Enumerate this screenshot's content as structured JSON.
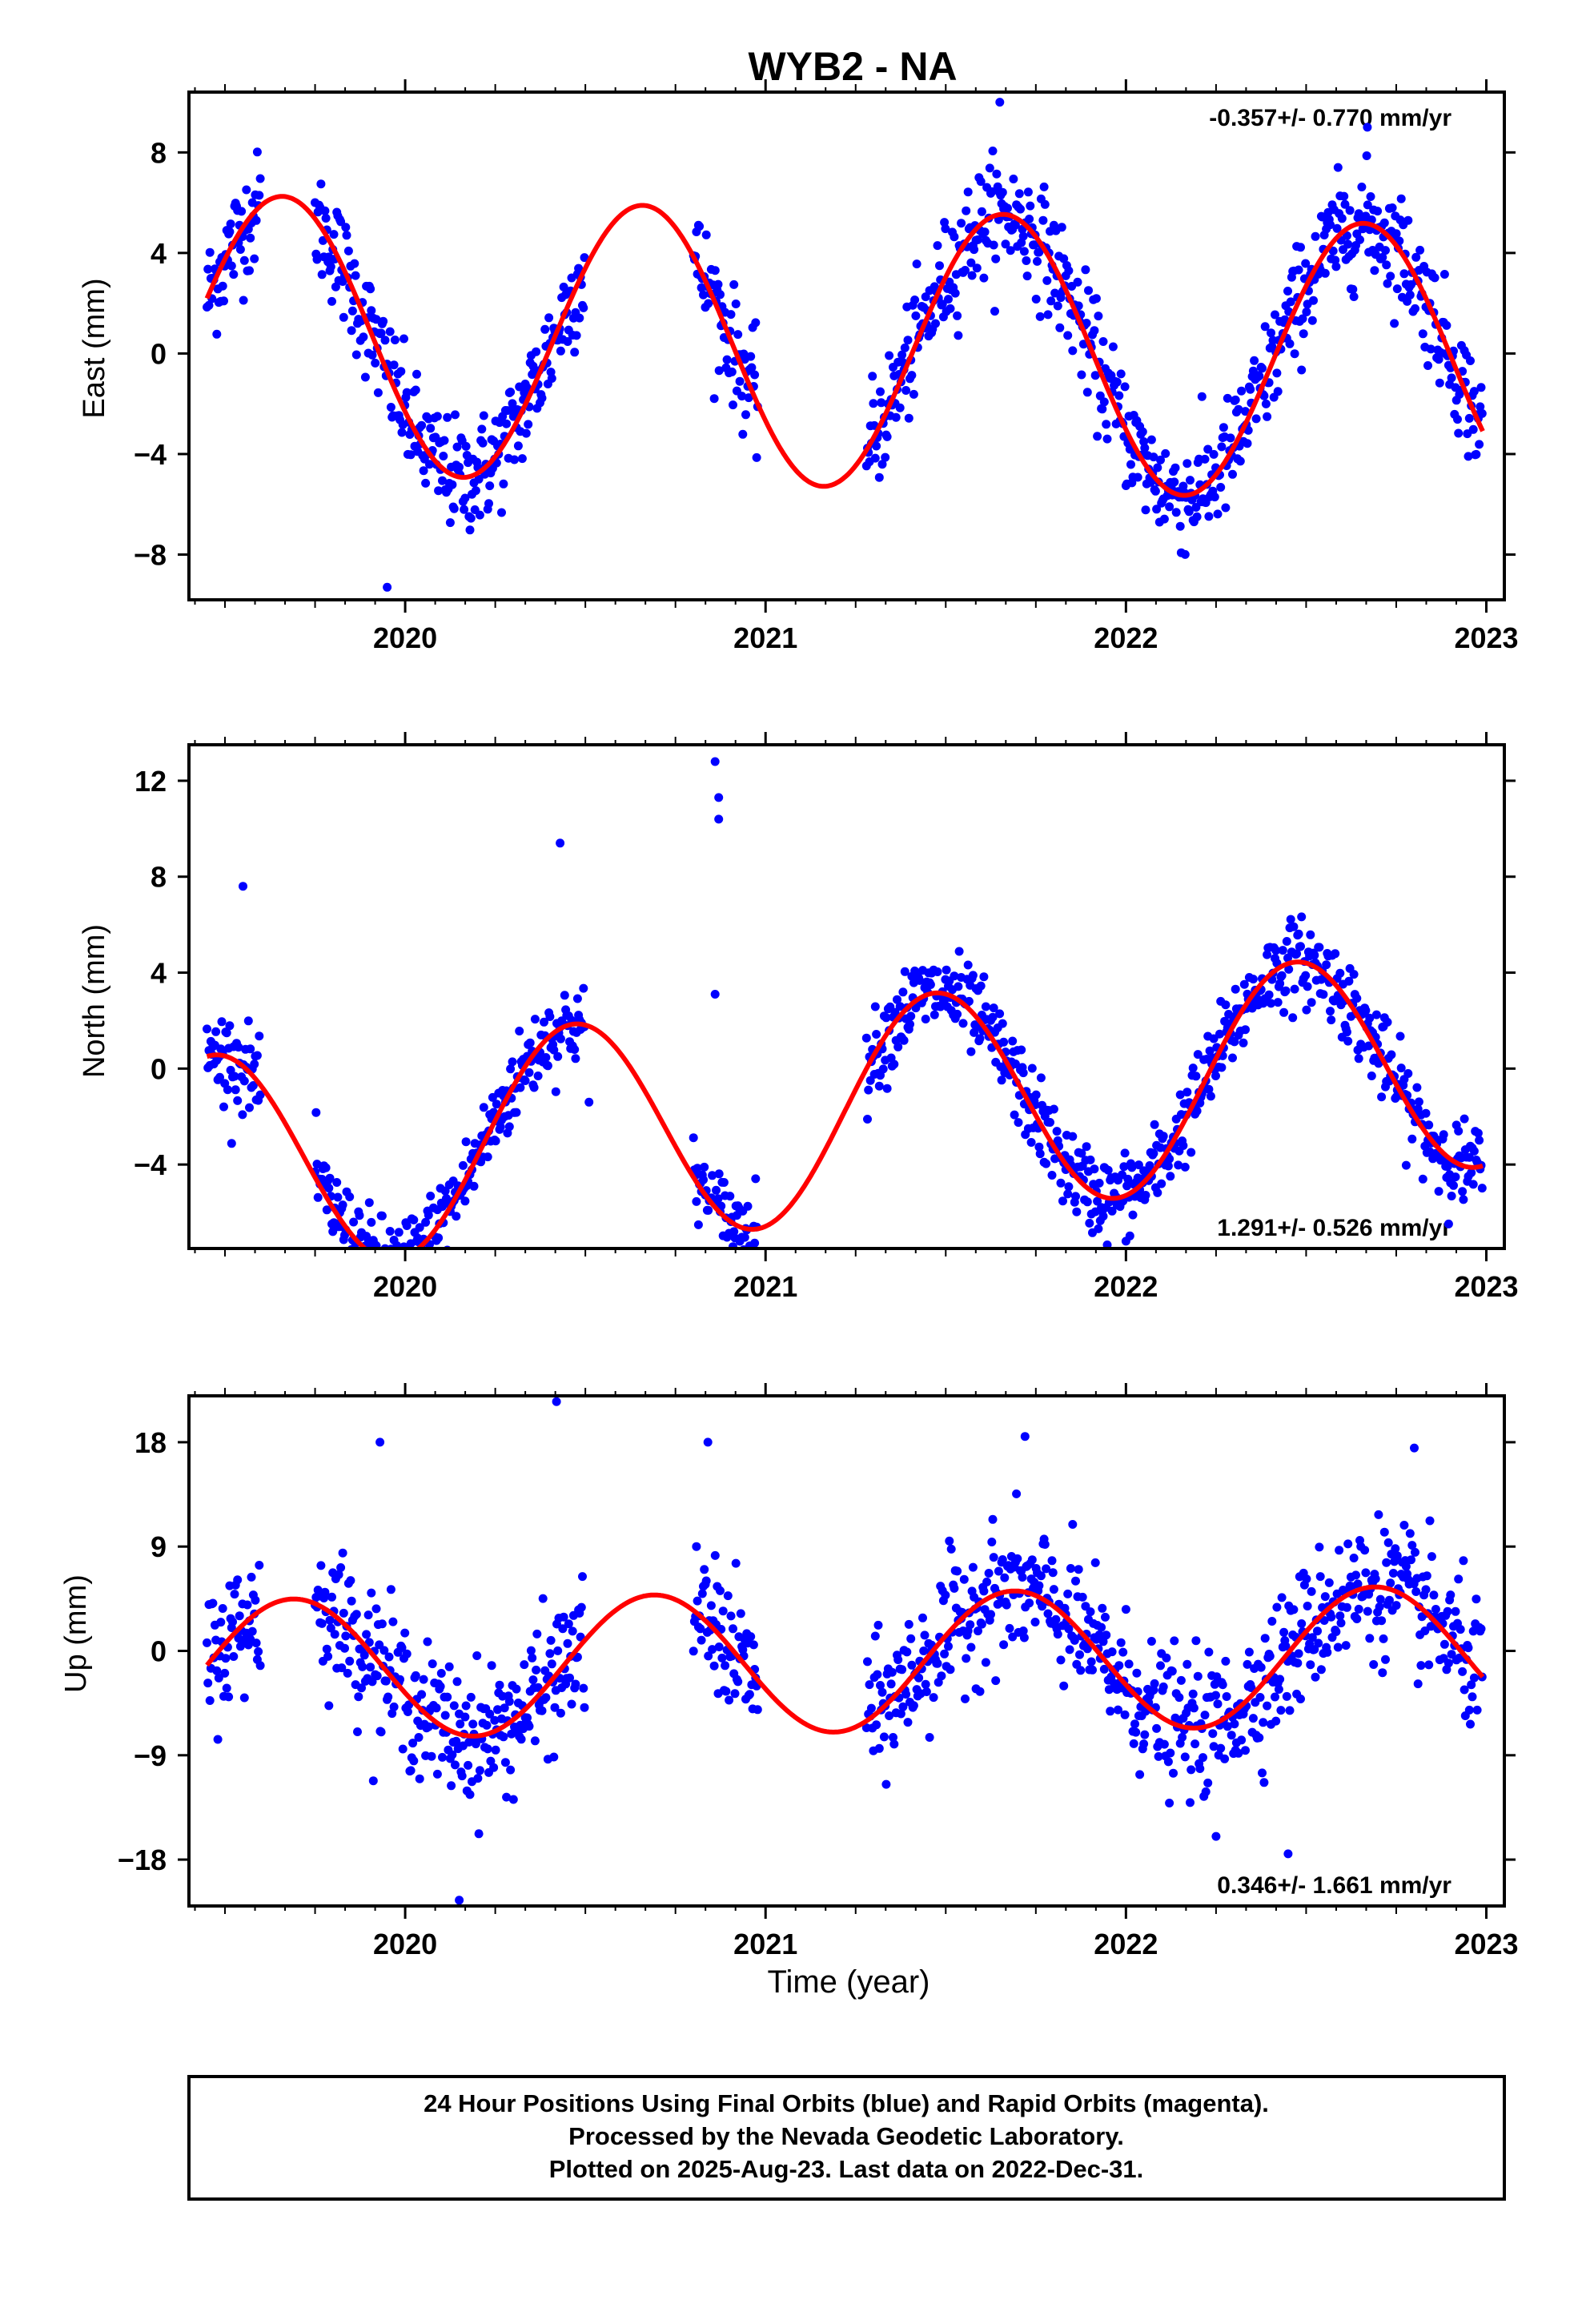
{
  "chart_data": {
    "title": "WYB2 - NA",
    "xlabel": "Time (year)",
    "x_ticks": [
      "2020",
      "2021",
      "2022",
      "2023"
    ],
    "colors": {
      "points": "#0000ff",
      "fit": "#ff0000",
      "frame": "#000000"
    },
    "panels": [
      {
        "name": "east",
        "type": "scatter",
        "ylabel": "East (mm)",
        "rate_label": "-0.357+/- 0.770 mm/yr",
        "rate_position": "top-right",
        "xlim": [
          2019.4,
          2023.05
        ],
        "ylim": [
          -9.8,
          10.4
        ],
        "y_ticks": [
          8,
          4,
          0,
          -4,
          -8
        ],
        "y_tick_labels": [
          "8",
          "4",
          "0",
          "−4",
          "−8"
        ],
        "fit": {
          "offset": 0.2,
          "trend": -0.357,
          "amplitude": 5.5,
          "peak_phase": 0.66
        },
        "scatter_std": 1.4,
        "coverage": [
          [
            2019.45,
            2019.6
          ],
          [
            2019.75,
            2020.5
          ],
          [
            2020.8,
            2020.98
          ],
          [
            2021.28,
            2022.99
          ]
        ],
        "outliers": [
          [
            2019.95,
            -9.3
          ],
          [
            2021.65,
            10.0
          ],
          [
            2022.67,
            9.0
          ]
        ]
      },
      {
        "name": "north",
        "type": "scatter",
        "ylabel": "North (mm)",
        "rate_label": "1.291+/- 0.526 mm/yr",
        "rate_position": "bottom-right",
        "xlim": [
          2019.4,
          2023.05
        ],
        "ylim": [
          -7.5,
          13.5
        ],
        "y_ticks": [
          12,
          8,
          4,
          0,
          -4
        ],
        "y_tick_labels": [
          "12",
          "8",
          "4",
          "0",
          "−4"
        ],
        "fit": {
          "offset": -1.8,
          "trend": 1.291,
          "amplitude": 4.6,
          "peak_phase": 0.47
        },
        "scatter_std": 1.1,
        "coverage": [
          [
            2019.45,
            2019.6
          ],
          [
            2019.75,
            2020.5
          ],
          [
            2020.8,
            2020.98
          ],
          [
            2021.28,
            2022.99
          ]
        ],
        "outliers": [
          [
            2020.86,
            12.8
          ],
          [
            2020.87,
            11.3
          ],
          [
            2020.87,
            10.4
          ],
          [
            2020.86,
            3.1
          ],
          [
            2020.05,
            -7.2
          ],
          [
            2020.51,
            -1.4
          ],
          [
            2019.55,
            7.6
          ],
          [
            2020.43,
            9.4
          ]
        ]
      },
      {
        "name": "up",
        "type": "scatter",
        "ylabel": "Up (mm)",
        "rate_label": "0.346+/- 1.661 mm/yr",
        "rate_position": "bottom-right",
        "xlim": [
          2019.4,
          2023.05
        ],
        "ylim": [
          -22,
          22
        ],
        "y_ticks": [
          18,
          9,
          0,
          -9,
          -18
        ],
        "y_tick_labels": [
          "18",
          "9",
          "0",
          "−9",
          "−18"
        ],
        "fit": {
          "offset": -1.0,
          "trend": 0.346,
          "amplitude": 6.0,
          "peak_phase": 0.69
        },
        "scatter_std": 3.6,
        "coverage": [
          [
            2019.45,
            2019.6
          ],
          [
            2019.75,
            2020.5
          ],
          [
            2020.8,
            2020.98
          ],
          [
            2021.28,
            2022.99
          ]
        ],
        "outliers": [
          [
            2020.42,
            21.5
          ],
          [
            2020.84,
            18.0
          ],
          [
            2020.15,
            -21.5
          ],
          [
            2019.93,
            18.0
          ],
          [
            2021.72,
            18.5
          ],
          [
            2022.25,
            -16.0
          ],
          [
            2022.45,
            -17.5
          ],
          [
            2022.8,
            17.5
          ]
        ]
      }
    ]
  },
  "footer": {
    "line1": "24 Hour Positions Using Final Orbits (blue) and Rapid Orbits (magenta).",
    "line2": "Processed by the Nevada Geodetic Laboratory.",
    "line3": "Plotted on 2025-Aug-23. Last data on 2022-Dec-31."
  }
}
